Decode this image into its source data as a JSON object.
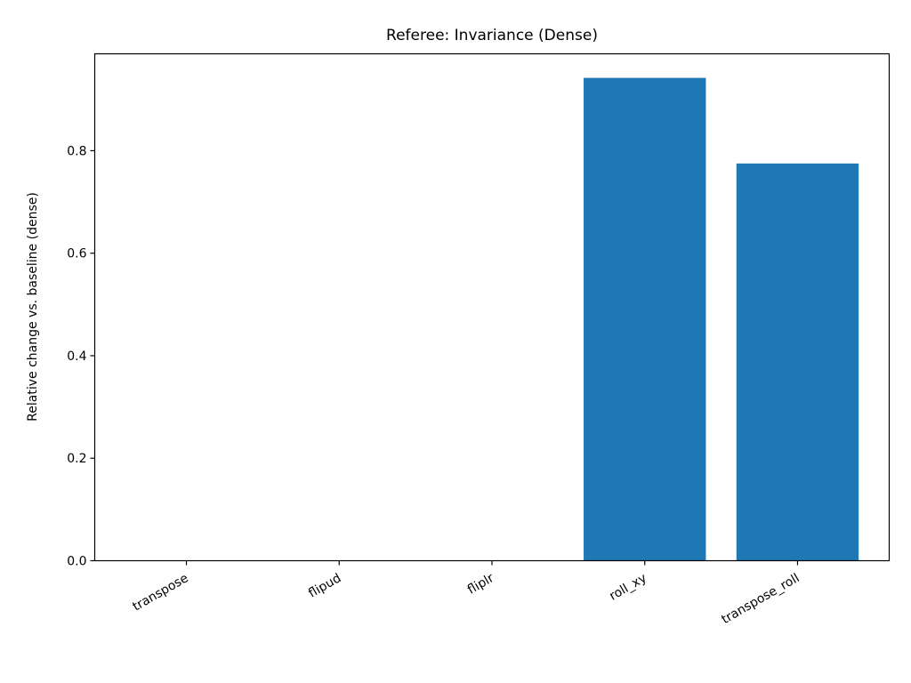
{
  "chart_data": {
    "type": "bar",
    "title": "Referee: Invariance (Dense)",
    "xlabel": "",
    "ylabel": "Relative change vs. baseline (dense)",
    "categories": [
      "transpose",
      "flipud",
      "fliplr",
      "roll_xy",
      "transpose_roll"
    ],
    "values": [
      0.0,
      0.0,
      0.0,
      0.942,
      0.775
    ],
    "ylim": [
      0,
      0.989
    ],
    "yticks": [
      0.0,
      0.2,
      0.4,
      0.6,
      0.8
    ],
    "ytick_labels": [
      "0.0",
      "0.2",
      "0.4",
      "0.6",
      "0.8"
    ],
    "bar_color": "#1f77b4",
    "grid": false
  }
}
